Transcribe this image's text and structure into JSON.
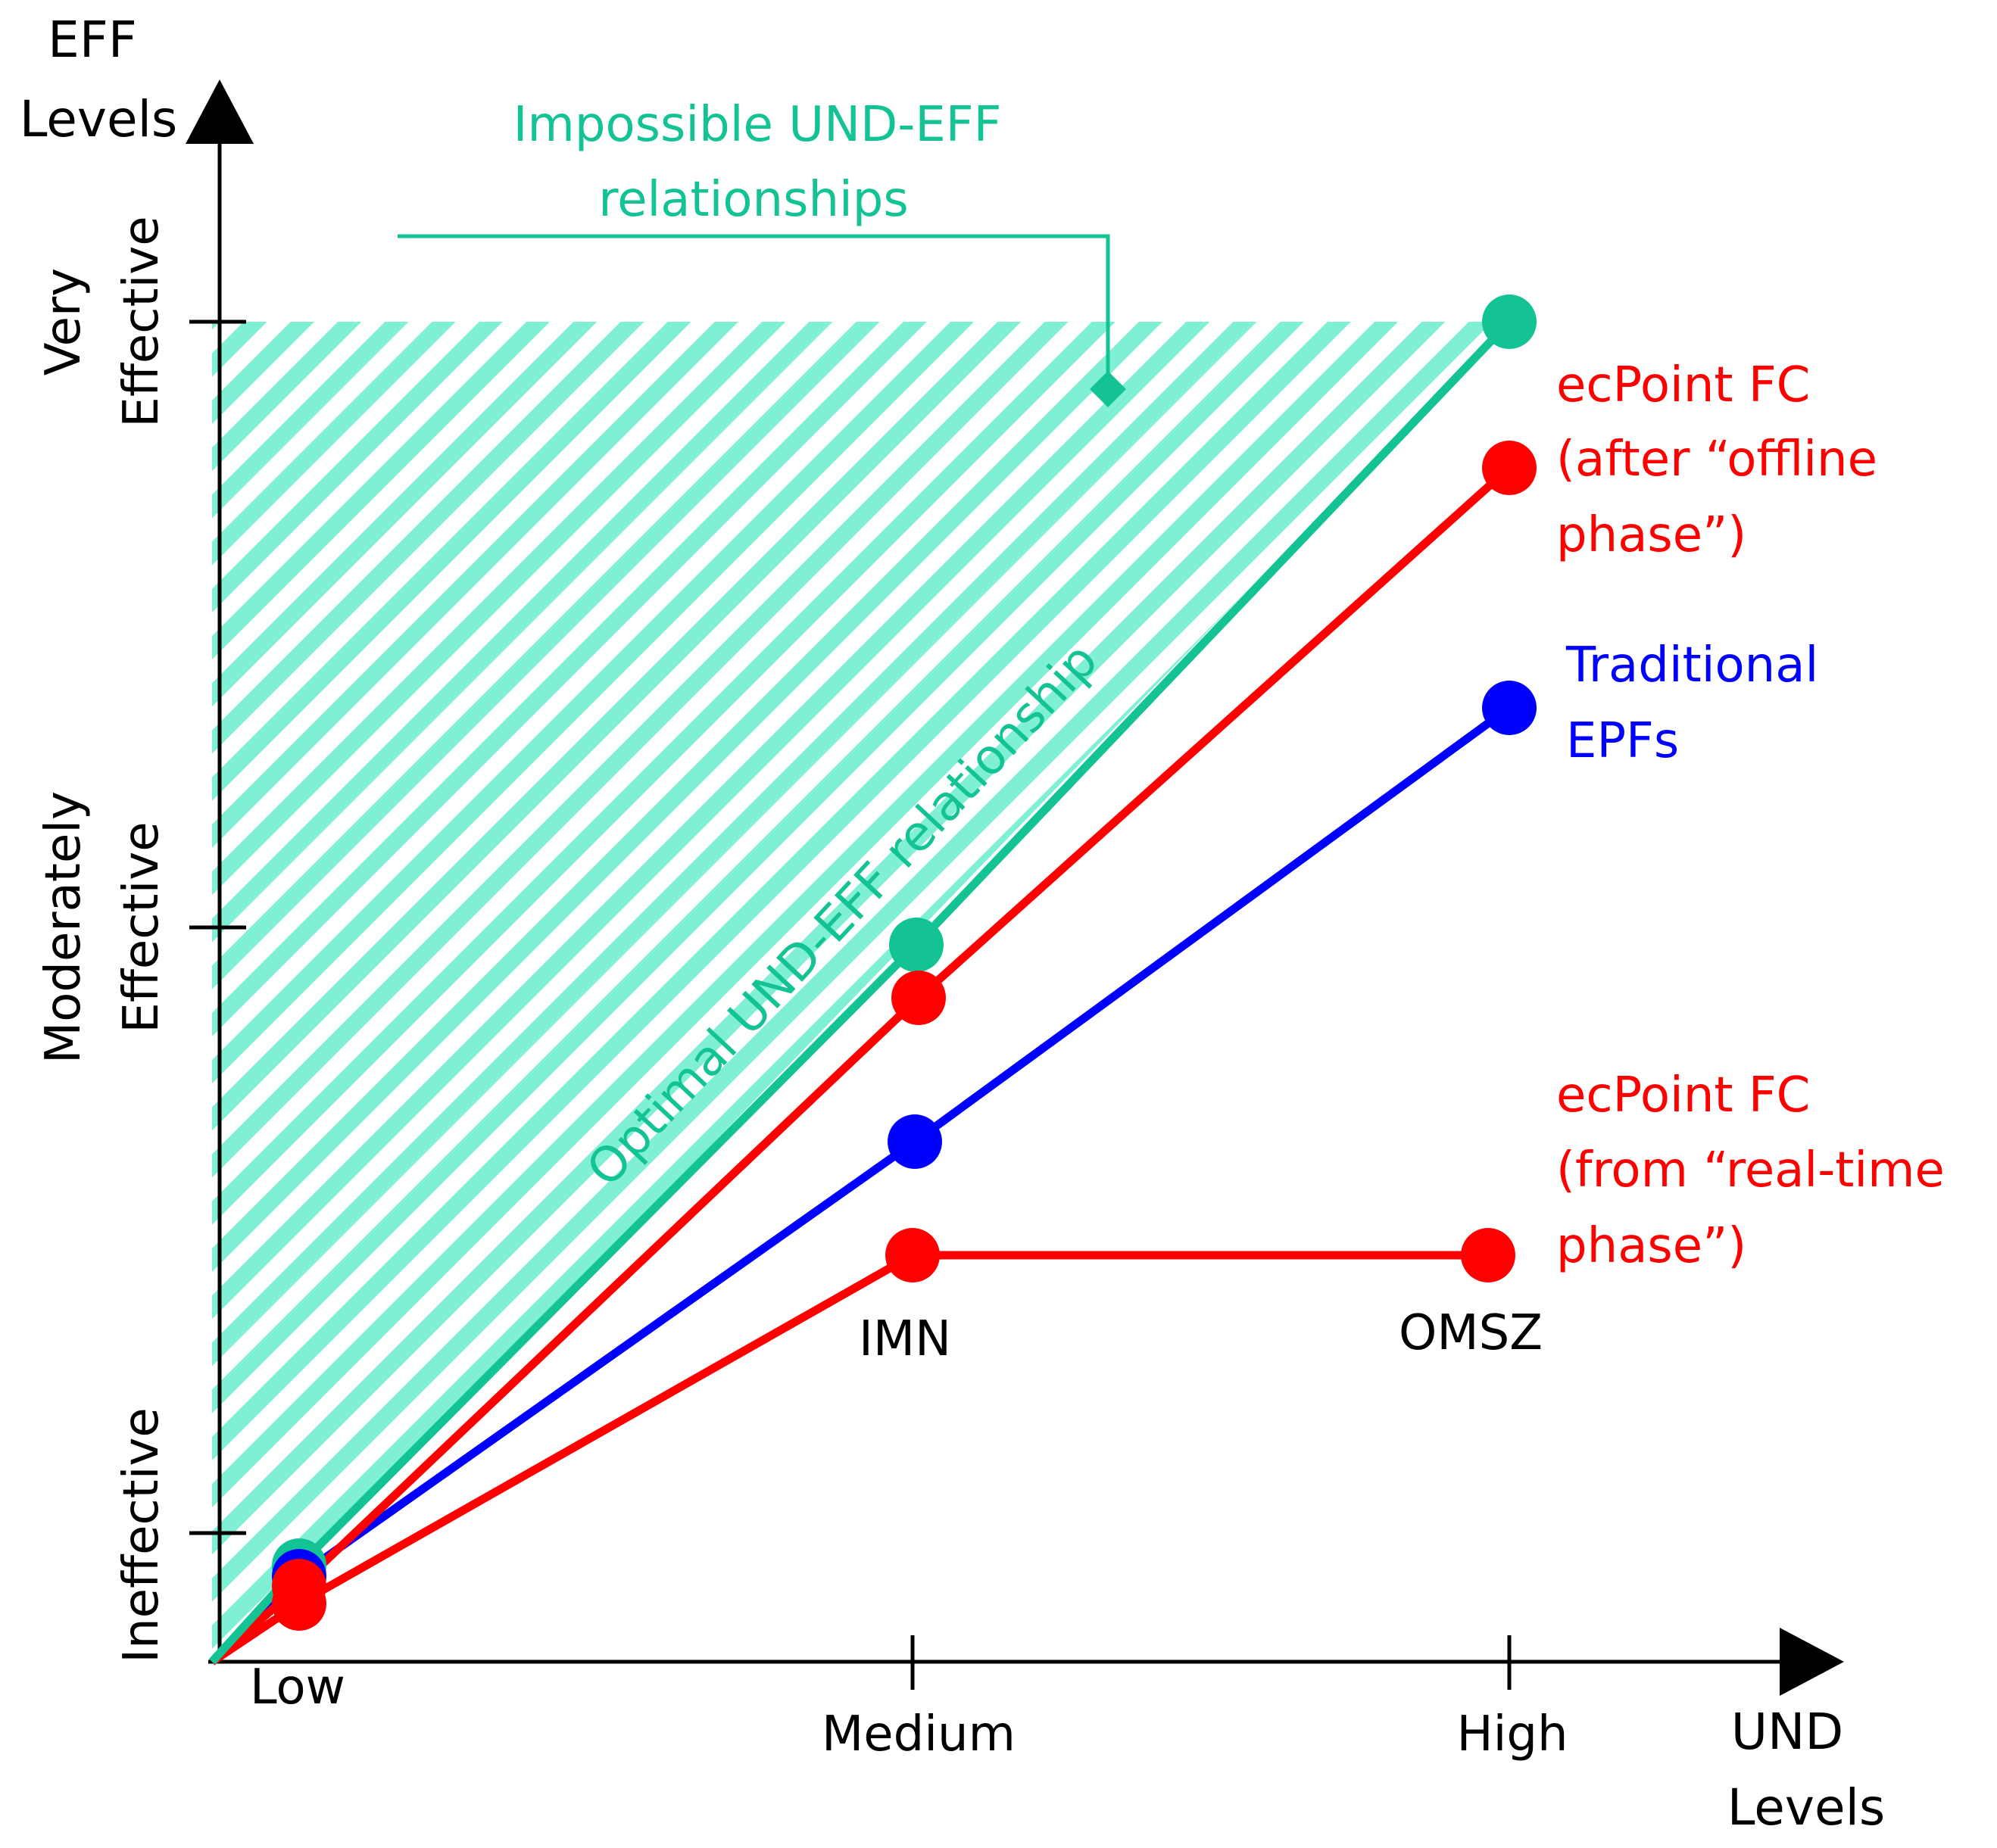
{
  "colors": {
    "optimal": "#14c394",
    "ecpoint": "#ff0000",
    "traditional": "#0000ff",
    "hatch": "#7ff0d4",
    "axis": "#000000"
  },
  "axes": {
    "x_title_line1": "UND",
    "x_title_line2": "Levels",
    "y_title_line1": "EFF",
    "y_title_line2": "Levels",
    "x_ticks": [
      "Low",
      "Medium",
      "High"
    ],
    "y_ticks": [
      {
        "line1": "Ineffective",
        "line2": ""
      },
      {
        "line1": "Moderately",
        "line2": "Effective"
      },
      {
        "line1": "Very",
        "line2": "Effective"
      }
    ]
  },
  "annotations": {
    "impossible_line1": "Impossible UND-EFF",
    "impossible_line2": "relationships",
    "optimal_label": "Optimal UND-EFF relationship",
    "imn": "IMN",
    "omsz": "OMSZ"
  },
  "legend": {
    "offline_line1": "ecPoint FC",
    "offline_line2": "(after “offline",
    "offline_line3": "phase”)",
    "traditional_line1": "Traditional",
    "traditional_line2": "EPFs",
    "realtime_line1": "ecPoint FC",
    "realtime_line2": "(from “real-time",
    "realtime_line3": "phase”)"
  }
}
